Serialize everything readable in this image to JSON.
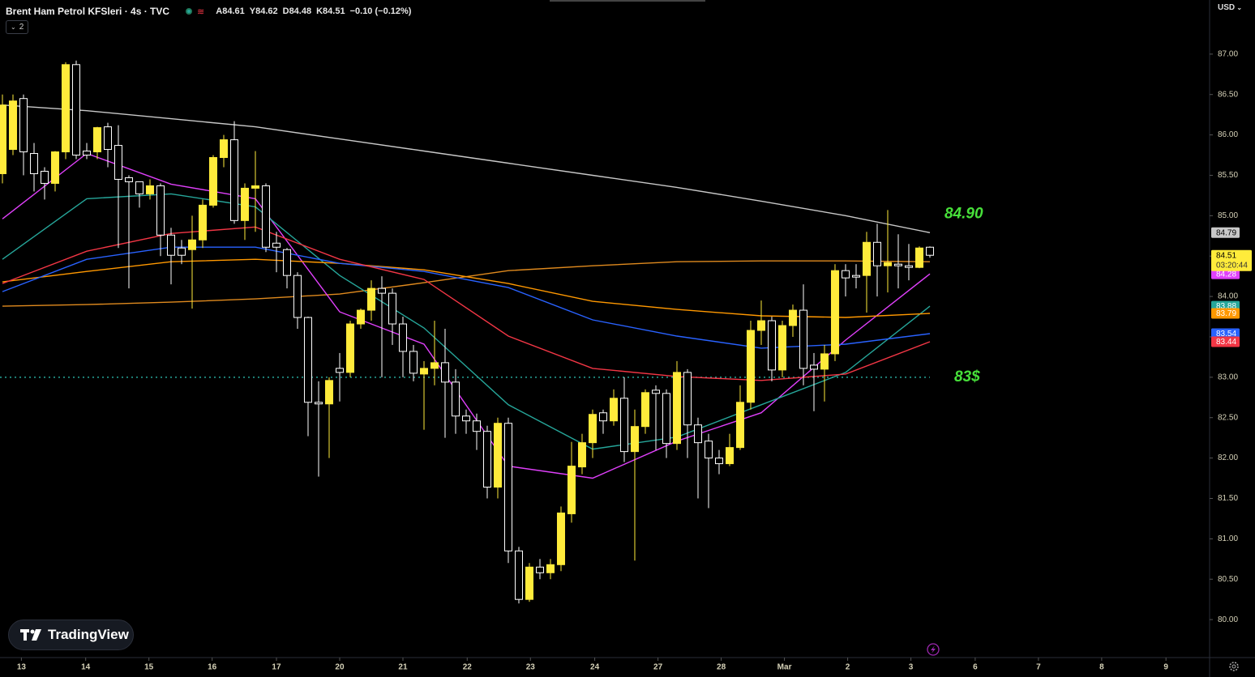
{
  "header": {
    "title": "Brent Ham Petrol KFSleri · 4s · TVC",
    "ohlc": [
      "A84.61",
      "Y84.62",
      "D84.48",
      "K84.51",
      "−0.10 (−0.12%)"
    ],
    "indicator_count": "2",
    "currency": "USD",
    "brand": "TradingView"
  },
  "chart_data": {
    "type": "candlestick",
    "xlim": [
      -0.23,
      114.54
    ],
    "ylim": [
      79.53,
      87.67
    ],
    "xticks": [
      {
        "value": 1.8,
        "label": "13"
      },
      {
        "value": 7.9,
        "label": "14"
      },
      {
        "value": 13.9,
        "label": "15"
      },
      {
        "value": 19.9,
        "label": "16"
      },
      {
        "value": 26.0,
        "label": "17"
      },
      {
        "value": 32.0,
        "label": "20"
      },
      {
        "value": 38.0,
        "label": "21"
      },
      {
        "value": 44.1,
        "label": "22"
      },
      {
        "value": 50.1,
        "label": "23"
      },
      {
        "value": 56.2,
        "label": "24"
      },
      {
        "value": 62.2,
        "label": "27"
      },
      {
        "value": 68.2,
        "label": "28"
      },
      {
        "value": 74.2,
        "label": "Mar"
      },
      {
        "value": 80.2,
        "label": "2"
      },
      {
        "value": 86.2,
        "label": "3"
      },
      {
        "value": 92.3,
        "label": "6"
      },
      {
        "value": 98.3,
        "label": "7"
      },
      {
        "value": 104.3,
        "label": "8"
      },
      {
        "value": 110.4,
        "label": "9"
      }
    ],
    "yticks": [
      {
        "value": 80,
        "label": "80.00"
      },
      {
        "value": 80.5,
        "label": "80.50"
      },
      {
        "value": 81,
        "label": "81.00"
      },
      {
        "value": 81.5,
        "label": "81.50"
      },
      {
        "value": 82,
        "label": "82.00"
      },
      {
        "value": 82.5,
        "label": "82.50"
      },
      {
        "value": 83,
        "label": "83.00"
      },
      {
        "value": 83.5,
        "label": "83.50"
      },
      {
        "value": 84,
        "label": "84.00"
      },
      {
        "value": 84.5,
        "label": "84.50"
      },
      {
        "value": 85,
        "label": "85.00"
      },
      {
        "value": 85.5,
        "label": "85.50"
      },
      {
        "value": 86,
        "label": "86.00"
      },
      {
        "value": 86.5,
        "label": "86.50"
      },
      {
        "value": 87,
        "label": "87.00"
      }
    ],
    "up_color": "#ffeb3b",
    "down_color": "#ffffff",
    "candles": {
      "x": [
        0,
        1,
        2,
        3,
        4,
        5,
        6,
        7,
        8,
        9,
        10,
        11,
        12,
        13,
        14,
        15,
        16,
        17,
        18,
        19,
        20,
        21,
        22,
        23,
        24,
        25,
        26,
        27,
        28,
        29,
        30,
        31,
        32,
        33,
        34,
        35,
        36,
        37,
        38,
        39,
        40,
        41,
        42,
        43,
        44,
        45,
        46,
        47,
        48,
        49,
        50,
        51,
        52,
        53,
        54,
        55,
        56,
        57,
        58,
        59,
        60,
        61,
        62,
        63,
        64,
        65,
        66,
        67,
        68,
        69,
        70,
        71,
        72,
        73,
        74,
        75,
        76,
        77,
        78,
        79,
        80,
        81,
        82,
        83,
        84,
        85,
        86,
        87,
        88
      ],
      "open": [
        85.52,
        85.82,
        86.45,
        85.77,
        85.55,
        85.4,
        85.79,
        86.87,
        85.8,
        85.79,
        86.1,
        85.87,
        85.47,
        85.42,
        85.27,
        85.37,
        84.76,
        84.6,
        84.58,
        84.7,
        85.13,
        85.72,
        85.94,
        84.94,
        85.34,
        85.37,
        84.66,
        84.58,
        84.26,
        83.74,
        82.69,
        82.67,
        83.11,
        83.06,
        83.66,
        83.83,
        84.1,
        84.04,
        83.66,
        83.32,
        83.04,
        83.11,
        83.18,
        82.94,
        82.52,
        82.46,
        82.33,
        81.64,
        82.43,
        80.85,
        80.25,
        80.65,
        80.58,
        80.68,
        81.31,
        81.89,
        82.19,
        82.56,
        82.46,
        82.74,
        82.08,
        82.39,
        82.84,
        82.8,
        82.18,
        83.06,
        82.41,
        82.21,
        82.0,
        81.93,
        82.13,
        82.69,
        83.58,
        83.7,
        83.09,
        83.64,
        83.83,
        83.15,
        83.1,
        83.29,
        84.32,
        84.26,
        84.26,
        84.67,
        84.38,
        84.4,
        84.38,
        84.36,
        84.61
      ],
      "high": [
        86.5,
        86.5,
        86.5,
        85.9,
        85.6,
        85.8,
        86.9,
        86.92,
        85.9,
        86.1,
        86.15,
        86.12,
        85.5,
        85.4,
        85.45,
        85.4,
        84.85,
        84.7,
        85.0,
        85.2,
        85.75,
        86.0,
        86.17,
        85.4,
        85.8,
        85.4,
        84.8,
        84.6,
        84.3,
        83.75,
        82.95,
        83.0,
        83.3,
        83.7,
        83.85,
        84.2,
        84.25,
        84.1,
        83.75,
        83.4,
        83.2,
        83.7,
        83.6,
        83.1,
        82.6,
        82.55,
        82.4,
        82.5,
        82.5,
        80.9,
        80.7,
        80.75,
        80.75,
        81.4,
        82.2,
        82.3,
        82.6,
        82.6,
        82.85,
        83.0,
        82.6,
        82.85,
        82.9,
        82.85,
        83.2,
        83.1,
        82.5,
        82.3,
        82.1,
        82.3,
        82.9,
        83.7,
        83.95,
        83.75,
        83.7,
        83.9,
        84.15,
        83.3,
        83.4,
        84.4,
        84.4,
        84.4,
        84.8,
        84.9,
        85.07,
        84.77,
        84.65,
        84.62,
        84.62
      ],
      "low": [
        85.4,
        85.75,
        85.5,
        85.3,
        85.2,
        85.3,
        85.7,
        85.7,
        85.7,
        85.7,
        85.6,
        84.6,
        84.1,
        85.1,
        85.2,
        84.5,
        84.15,
        84.4,
        83.85,
        84.6,
        85.1,
        85.6,
        84.9,
        84.7,
        84.8,
        84.55,
        84.3,
        84.1,
        83.6,
        82.27,
        81.77,
        82.0,
        82.7,
        83.0,
        83.6,
        83.7,
        83.0,
        83.4,
        83.0,
        82.95,
        82.35,
        82.9,
        82.25,
        82.3,
        82.3,
        82.1,
        81.5,
        81.5,
        80.7,
        80.2,
        80.22,
        80.5,
        80.5,
        80.6,
        81.2,
        81.8,
        82.0,
        82.3,
        82.4,
        81.95,
        80.73,
        82.3,
        82.1,
        82.0,
        82.1,
        82.0,
        81.5,
        81.38,
        81.8,
        81.9,
        82.1,
        82.6,
        83.4,
        82.95,
        83.0,
        83.5,
        82.9,
        82.58,
        82.7,
        83.2,
        84.0,
        84.1,
        83.8,
        84.0,
        84.05,
        84.1,
        84.2,
        84.35,
        84.48
      ],
      "close": [
        86.37,
        86.42,
        85.79,
        85.52,
        85.4,
        85.79,
        86.87,
        85.75,
        85.75,
        86.09,
        85.82,
        85.45,
        85.42,
        85.27,
        85.37,
        84.76,
        84.51,
        84.51,
        84.7,
        85.13,
        85.72,
        85.94,
        84.94,
        85.34,
        85.37,
        84.61,
        84.61,
        84.26,
        83.74,
        82.69,
        82.67,
        82.96,
        83.06,
        83.66,
        83.83,
        84.1,
        84.04,
        83.66,
        83.32,
        83.05,
        83.11,
        83.18,
        82.94,
        82.52,
        82.46,
        82.33,
        81.64,
        82.43,
        80.85,
        80.25,
        80.65,
        80.58,
        80.68,
        81.32,
        81.9,
        82.19,
        82.54,
        82.46,
        82.74,
        82.08,
        82.39,
        82.81,
        82.8,
        82.18,
        83.06,
        82.41,
        82.19,
        82.0,
        81.93,
        82.13,
        82.69,
        83.58,
        83.7,
        83.09,
        83.64,
        83.83,
        83.11,
        83.1,
        83.29,
        84.32,
        84.23,
        84.24,
        84.67,
        84.38,
        84.42,
        84.38,
        84.36,
        84.6,
        84.51
      ]
    },
    "countdown": "03:20:44",
    "series": [
      {
        "color": "#c8c8c8",
        "x": [
          0,
          8,
          16,
          24,
          32,
          40,
          48,
          56,
          64,
          72,
          80,
          88
        ],
        "values": [
          86.37,
          86.3,
          86.2,
          86.1,
          85.95,
          85.8,
          85.65,
          85.5,
          85.35,
          85.18,
          85.0,
          84.79
        ]
      },
      {
        "color": "#e08a1e",
        "x": [
          0,
          8,
          16,
          24,
          32,
          40,
          48,
          56,
          64,
          72,
          80,
          88
        ],
        "values": [
          83.88,
          83.9,
          83.93,
          83.97,
          84.03,
          84.17,
          84.32,
          84.38,
          84.43,
          84.44,
          84.44,
          84.43
        ]
      },
      {
        "color": "#e040fb",
        "x": [
          0,
          8,
          16,
          24,
          32,
          40,
          48,
          56,
          64,
          72,
          80,
          88
        ],
        "values": [
          84.96,
          85.77,
          85.39,
          85.21,
          83.81,
          83.41,
          81.9,
          81.75,
          82.21,
          82.56,
          83.46,
          84.28
        ]
      },
      {
        "color": "#26a69a",
        "x": [
          0,
          8,
          16,
          24,
          32,
          40,
          48,
          56,
          64,
          72,
          80,
          88
        ],
        "values": [
          84.46,
          85.21,
          85.27,
          85.11,
          84.26,
          83.61,
          82.66,
          82.11,
          82.26,
          82.66,
          83.06,
          83.88
        ]
      },
      {
        "color": "#ff9800",
        "x": [
          0,
          8,
          16,
          24,
          32,
          40,
          48,
          56,
          64,
          72,
          80,
          88
        ],
        "values": [
          84.18,
          84.31,
          84.43,
          84.46,
          84.41,
          84.33,
          84.16,
          83.94,
          83.84,
          83.76,
          83.74,
          83.79
        ]
      },
      {
        "color": "#2962ff",
        "x": [
          0,
          8,
          16,
          24,
          32,
          40,
          48,
          56,
          64,
          72,
          80,
          88
        ],
        "values": [
          84.06,
          84.46,
          84.61,
          84.61,
          84.41,
          84.31,
          84.11,
          83.71,
          83.51,
          83.36,
          83.41,
          83.54
        ]
      },
      {
        "color": "#f23645",
        "x": [
          0,
          8,
          16,
          24,
          32,
          40,
          48,
          56,
          64,
          72,
          80,
          88
        ],
        "values": [
          84.16,
          84.56,
          84.78,
          84.86,
          84.46,
          84.21,
          83.51,
          83.11,
          83.01,
          82.96,
          83.04,
          83.44
        ]
      }
    ],
    "level": {
      "value": 83,
      "label": "83$",
      "color": "#26a69a"
    },
    "annotation": {
      "text": "84.90",
      "value": 84.9,
      "color": "#47e03a"
    }
  }
}
